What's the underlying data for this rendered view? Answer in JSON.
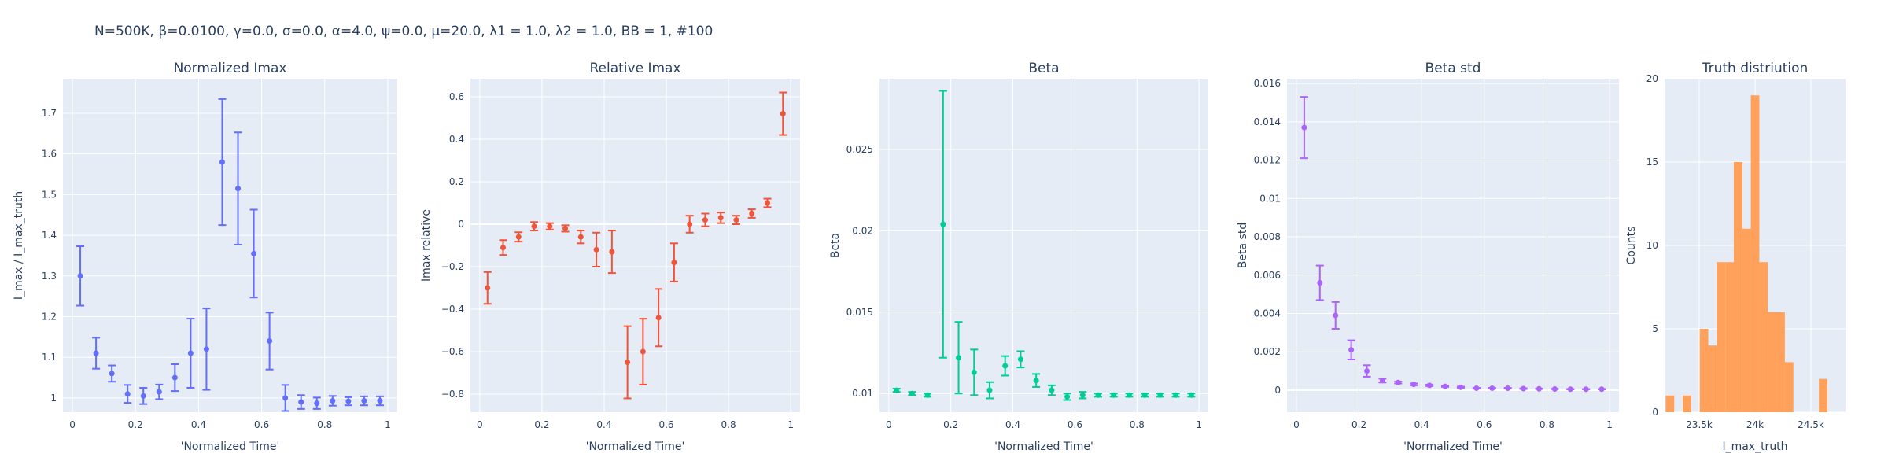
{
  "figure_title": "N=500K, β=0.0100, γ=0.0, σ=0.0,  α=4.0, ψ=0.0, μ=20.0, λ1 = 1.0, λ2 = 1.0, BB = 1, #100",
  "colors": {
    "bg": "#e5ecf6",
    "grid": "#ffffff",
    "p1": "#636efa",
    "p2": "#ef553b",
    "p3": "#00cc96",
    "p4": "#ab63fa",
    "p5": "#ffa15a"
  },
  "chart_data": [
    {
      "type": "scatter",
      "title": "Normalized Imax",
      "xlabel": "'Normalized Time'",
      "ylabel": "I_max / I_max_truth",
      "xlim": [
        -0.03,
        1.03
      ],
      "ylim": [
        0.965,
        1.785
      ],
      "xticks": [
        0,
        0.2,
        0.4,
        0.6,
        0.8,
        1
      ],
      "xticklabels": [
        "0",
        "0.2",
        "0.4",
        "0.6",
        "0.8",
        "1"
      ],
      "yticks": [
        1,
        1.1,
        1.2,
        1.3,
        1.4,
        1.5,
        1.6,
        1.7
      ],
      "yticklabels": [
        "1",
        "1.1",
        "1.2",
        "1.3",
        "1.4",
        "1.5",
        "1.6",
        "1.7"
      ],
      "color": "#636efa",
      "series": [
        {
          "x": [
            0.025,
            0.075,
            0.125,
            0.175,
            0.225,
            0.275,
            0.325,
            0.375,
            0.425,
            0.475,
            0.525,
            0.575,
            0.625,
            0.675,
            0.725,
            0.775,
            0.825,
            0.875,
            0.925,
            0.975
          ],
          "y": [
            1.3,
            1.11,
            1.06,
            1.01,
            1.005,
            1.015,
            1.05,
            1.11,
            1.12,
            1.58,
            1.515,
            1.355,
            1.14,
            1.0,
            0.99,
            0.987,
            0.993,
            0.992,
            0.993,
            0.993
          ],
          "err": [
            0.073,
            0.038,
            0.02,
            0.022,
            0.02,
            0.018,
            0.033,
            0.085,
            0.1,
            0.155,
            0.138,
            0.108,
            0.07,
            0.032,
            0.017,
            0.014,
            0.012,
            0.01,
            0.011,
            0.011
          ]
        }
      ]
    },
    {
      "type": "scatter",
      "title": "Relative Imax",
      "xlabel": "'Normalized Time'",
      "ylabel": "Imax relative",
      "xlim": [
        -0.03,
        1.03
      ],
      "ylim": [
        -0.885,
        0.685
      ],
      "xticks": [
        0,
        0.2,
        0.4,
        0.6,
        0.8,
        1
      ],
      "xticklabels": [
        "0",
        "0.2",
        "0.4",
        "0.6",
        "0.8",
        "1"
      ],
      "yticks": [
        -0.8,
        -0.6,
        -0.4,
        -0.2,
        0,
        0.2,
        0.4,
        0.6
      ],
      "yticklabels": [
        "−0.8",
        "−0.6",
        "−0.4",
        "−0.2",
        "0",
        "0.2",
        "0.4",
        "0.6"
      ],
      "color": "#ef553b",
      "series": [
        {
          "x": [
            0.025,
            0.075,
            0.125,
            0.175,
            0.225,
            0.275,
            0.325,
            0.375,
            0.425,
            0.475,
            0.525,
            0.575,
            0.625,
            0.675,
            0.725,
            0.775,
            0.825,
            0.875,
            0.925,
            0.975
          ],
          "y": [
            -0.3,
            -0.11,
            -0.06,
            -0.01,
            -0.01,
            -0.02,
            -0.06,
            -0.12,
            -0.13,
            -0.65,
            -0.6,
            -0.44,
            -0.18,
            0.0,
            0.02,
            0.03,
            0.02,
            0.05,
            0.1,
            0.52
          ],
          "err": [
            0.075,
            0.035,
            0.022,
            0.02,
            0.015,
            0.015,
            0.03,
            0.08,
            0.1,
            0.17,
            0.155,
            0.135,
            0.09,
            0.04,
            0.03,
            0.025,
            0.02,
            0.02,
            0.02,
            0.1
          ]
        }
      ]
    },
    {
      "type": "scatter",
      "title": "Beta",
      "xlabel": "'Normalized Time'",
      "ylabel": "Beta",
      "xlim": [
        -0.03,
        1.03
      ],
      "ylim": [
        0.00885,
        0.02935
      ],
      "xticks": [
        0,
        0.2,
        0.4,
        0.6,
        0.8,
        1
      ],
      "xticklabels": [
        "0",
        "0.2",
        "0.4",
        "0.6",
        "0.8",
        "1"
      ],
      "yticks": [
        0.01,
        0.015,
        0.02,
        0.025
      ],
      "yticklabels": [
        "0.01",
        "0.015",
        "0.02",
        "0.025"
      ],
      "color": "#00cc96",
      "series": [
        {
          "x": [
            0.025,
            0.075,
            0.125,
            0.175,
            0.225,
            0.275,
            0.325,
            0.375,
            0.425,
            0.475,
            0.525,
            0.575,
            0.625,
            0.675,
            0.725,
            0.775,
            0.825,
            0.875,
            0.925,
            0.975
          ],
          "y": [
            0.0102,
            0.01,
            0.0099,
            0.0204,
            0.0122,
            0.0113,
            0.0102,
            0.0117,
            0.0121,
            0.0108,
            0.0102,
            0.0098,
            0.0099,
            0.0099,
            0.0099,
            0.0099,
            0.0099,
            0.0099,
            0.0099,
            0.0099
          ],
          "err": [
            0.0001,
            0.0001,
            0.0001,
            0.0082,
            0.0022,
            0.0014,
            0.0005,
            0.0006,
            0.0005,
            0.0004,
            0.0003,
            0.0002,
            0.0002,
            0.0001,
            0.0001,
            0.0001,
            0.0001,
            0.0001,
            0.0001,
            0.0001
          ]
        }
      ]
    },
    {
      "type": "scatter",
      "title": "Beta std",
      "xlabel": "'Normalized Time'",
      "ylabel": "Beta std",
      "xlim": [
        -0.03,
        1.03
      ],
      "ylim": [
        -0.00115,
        0.01625
      ],
      "xticks": [
        0,
        0.2,
        0.4,
        0.6,
        0.8,
        1
      ],
      "xticklabels": [
        "0",
        "0.2",
        "0.4",
        "0.6",
        "0.8",
        "1"
      ],
      "yticks": [
        0,
        0.002,
        0.004,
        0.006,
        0.008,
        0.01,
        0.012,
        0.014,
        0.016
      ],
      "yticklabels": [
        "0",
        "0.002",
        "0.004",
        "0.006",
        "0.008",
        "0.01",
        "0.012",
        "0.014",
        "0.016"
      ],
      "color": "#ab63fa",
      "series": [
        {
          "x": [
            0.025,
            0.075,
            0.125,
            0.175,
            0.225,
            0.275,
            0.325,
            0.375,
            0.425,
            0.475,
            0.525,
            0.575,
            0.625,
            0.675,
            0.725,
            0.775,
            0.825,
            0.875,
            0.925,
            0.975
          ],
          "y": [
            0.0137,
            0.0056,
            0.0039,
            0.0021,
            0.001,
            0.0005,
            0.0004,
            0.0003,
            0.00025,
            0.0002,
            0.00015,
            0.0001,
            0.0001,
            0.0001,
            8e-05,
            7e-05,
            6e-05,
            5e-05,
            5e-05,
            5e-05
          ],
          "err": [
            0.0016,
            0.0009,
            0.0007,
            0.0005,
            0.0003,
            0.0001,
            5e-05,
            5e-05,
            4e-05,
            3e-05,
            3e-05,
            2e-05,
            2e-05,
            2e-05,
            2e-05,
            1e-05,
            1e-05,
            1e-05,
            1e-05,
            1e-05
          ]
        }
      ]
    },
    {
      "type": "bar",
      "title": "Truth distriution",
      "xlabel": "I_max_truth",
      "ylabel": "Counts",
      "xlim": [
        23190,
        24810
      ],
      "ylim": [
        0,
        20
      ],
      "xticks": [
        23500,
        24000,
        24500
      ],
      "xticklabels": [
        "23.5k",
        "24k",
        "24.5k"
      ],
      "yticks": [
        0,
        5,
        10,
        15,
        20
      ],
      "yticklabels": [
        "0",
        "5",
        "10",
        "15",
        "20"
      ],
      "color": "#ffa15a",
      "bins": {
        "start": 23200,
        "width": 76.2
      },
      "counts": [
        1,
        0,
        1,
        0,
        5,
        4,
        9,
        9,
        15,
        11,
        19,
        9,
        6,
        6,
        3,
        0,
        0,
        0,
        2
      ]
    }
  ]
}
